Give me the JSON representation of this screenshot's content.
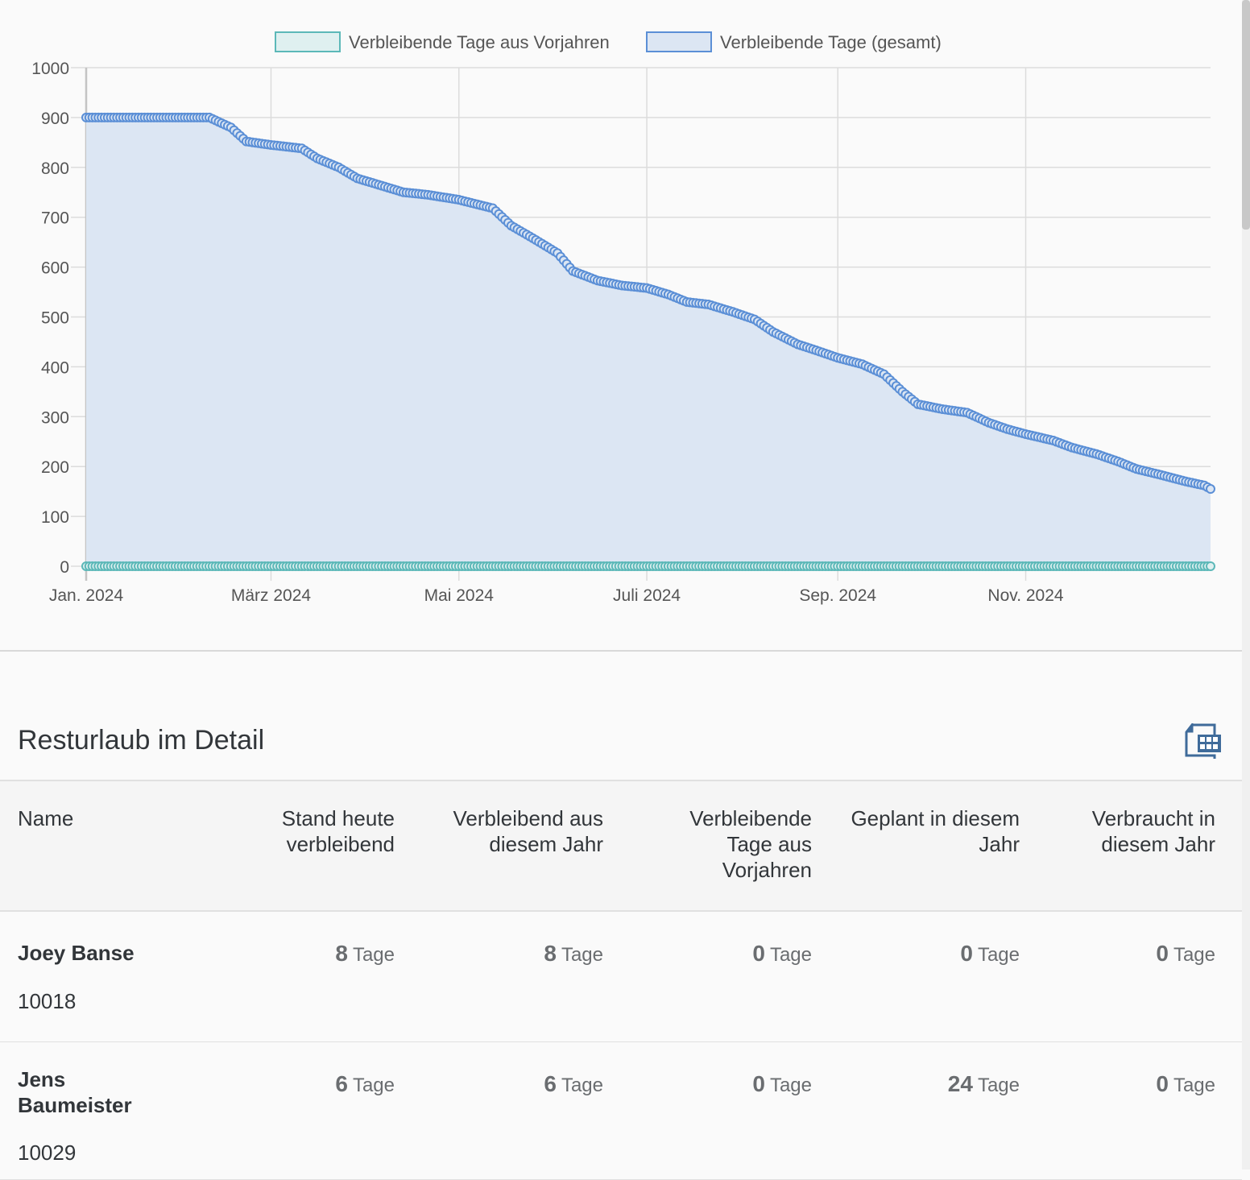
{
  "chart_data": {
    "type": "area",
    "legend": [
      "Verbleibende Tage aus Vorjahren",
      "Verbleibende Tage (gesamt)"
    ],
    "legend_position": "top",
    "grid": true,
    "ylim": [
      0,
      1000
    ],
    "yticks": [
      "0",
      "100",
      "200",
      "300",
      "400",
      "500",
      "600",
      "700",
      "800",
      "900",
      "1000"
    ],
    "xlim": [
      "2024-01-01",
      "2024-12-31"
    ],
    "xticks": [
      {
        "date": "2024-01-01",
        "label": "Jan. 2024"
      },
      {
        "date": "2024-03-01",
        "label": "März 2024"
      },
      {
        "date": "2024-05-01",
        "label": "Mai 2024"
      },
      {
        "date": "2024-07-01",
        "label": "Juli 2024"
      },
      {
        "date": "2024-09-01",
        "label": "Sep. 2024"
      },
      {
        "date": "2024-11-01",
        "label": "Nov. 2024"
      }
    ],
    "series": [
      {
        "name": "Verbleibende Tage aus Vorjahren",
        "color": "#5cb8b8",
        "fill": "#dff0f0",
        "points": [
          [
            "2024-01-01",
            0
          ],
          [
            "2024-12-31",
            0
          ]
        ]
      },
      {
        "name": "Verbleibende Tage (gesamt)",
        "color": "#5b8fd6",
        "fill": "#dce6f3",
        "points": [
          [
            "2024-01-01",
            900
          ],
          [
            "2024-02-10",
            900
          ],
          [
            "2024-02-17",
            880
          ],
          [
            "2024-02-22",
            852
          ],
          [
            "2024-03-01",
            845
          ],
          [
            "2024-03-11",
            838
          ],
          [
            "2024-03-16",
            818
          ],
          [
            "2024-03-23",
            800
          ],
          [
            "2024-03-29",
            778
          ],
          [
            "2024-04-05",
            765
          ],
          [
            "2024-04-13",
            750
          ],
          [
            "2024-04-21",
            745
          ],
          [
            "2024-05-01",
            735
          ],
          [
            "2024-05-12",
            718
          ],
          [
            "2024-05-18",
            683
          ],
          [
            "2024-05-25",
            658
          ],
          [
            "2024-06-02",
            628
          ],
          [
            "2024-06-07",
            592
          ],
          [
            "2024-06-15",
            573
          ],
          [
            "2024-06-23",
            563
          ],
          [
            "2024-07-01",
            558
          ],
          [
            "2024-07-08",
            545
          ],
          [
            "2024-07-14",
            530
          ],
          [
            "2024-07-21",
            525
          ],
          [
            "2024-07-29",
            510
          ],
          [
            "2024-08-05",
            495
          ],
          [
            "2024-08-11",
            470
          ],
          [
            "2024-08-19",
            445
          ],
          [
            "2024-08-24",
            435
          ],
          [
            "2024-09-01",
            418
          ],
          [
            "2024-09-09",
            405
          ],
          [
            "2024-09-16",
            385
          ],
          [
            "2024-09-22",
            350
          ],
          [
            "2024-09-27",
            325
          ],
          [
            "2024-10-05",
            315
          ],
          [
            "2024-10-13",
            308
          ],
          [
            "2024-10-20",
            288
          ],
          [
            "2024-10-26",
            275
          ],
          [
            "2024-11-01",
            265
          ],
          [
            "2024-11-10",
            252
          ],
          [
            "2024-11-16",
            238
          ],
          [
            "2024-11-24",
            225
          ],
          [
            "2024-12-01",
            210
          ],
          [
            "2024-12-07",
            195
          ],
          [
            "2024-12-15",
            183
          ],
          [
            "2024-12-23",
            170
          ],
          [
            "2024-12-29",
            162
          ],
          [
            "2024-12-31",
            155
          ]
        ]
      }
    ]
  },
  "section": {
    "title": "Resturlaub im Detail",
    "export_icon": "spreadsheet-export-icon"
  },
  "table": {
    "headers": [
      "Name",
      "Stand heute verbleibend",
      "Verbleibend aus diesem Jahr",
      "Verbleibende Tage aus Vorjahren",
      "Geplant in diesem Jahr",
      "Verbraucht in diesem Jahr"
    ],
    "unit": "Tage",
    "rows": [
      {
        "name": "Joey Banse",
        "id": "10018",
        "values": [
          "8",
          "8",
          "0",
          "0",
          "0"
        ]
      },
      {
        "name": "Jens Baumeister",
        "id": "10029",
        "values": [
          "6",
          "6",
          "0",
          "24",
          "0"
        ]
      }
    ]
  }
}
